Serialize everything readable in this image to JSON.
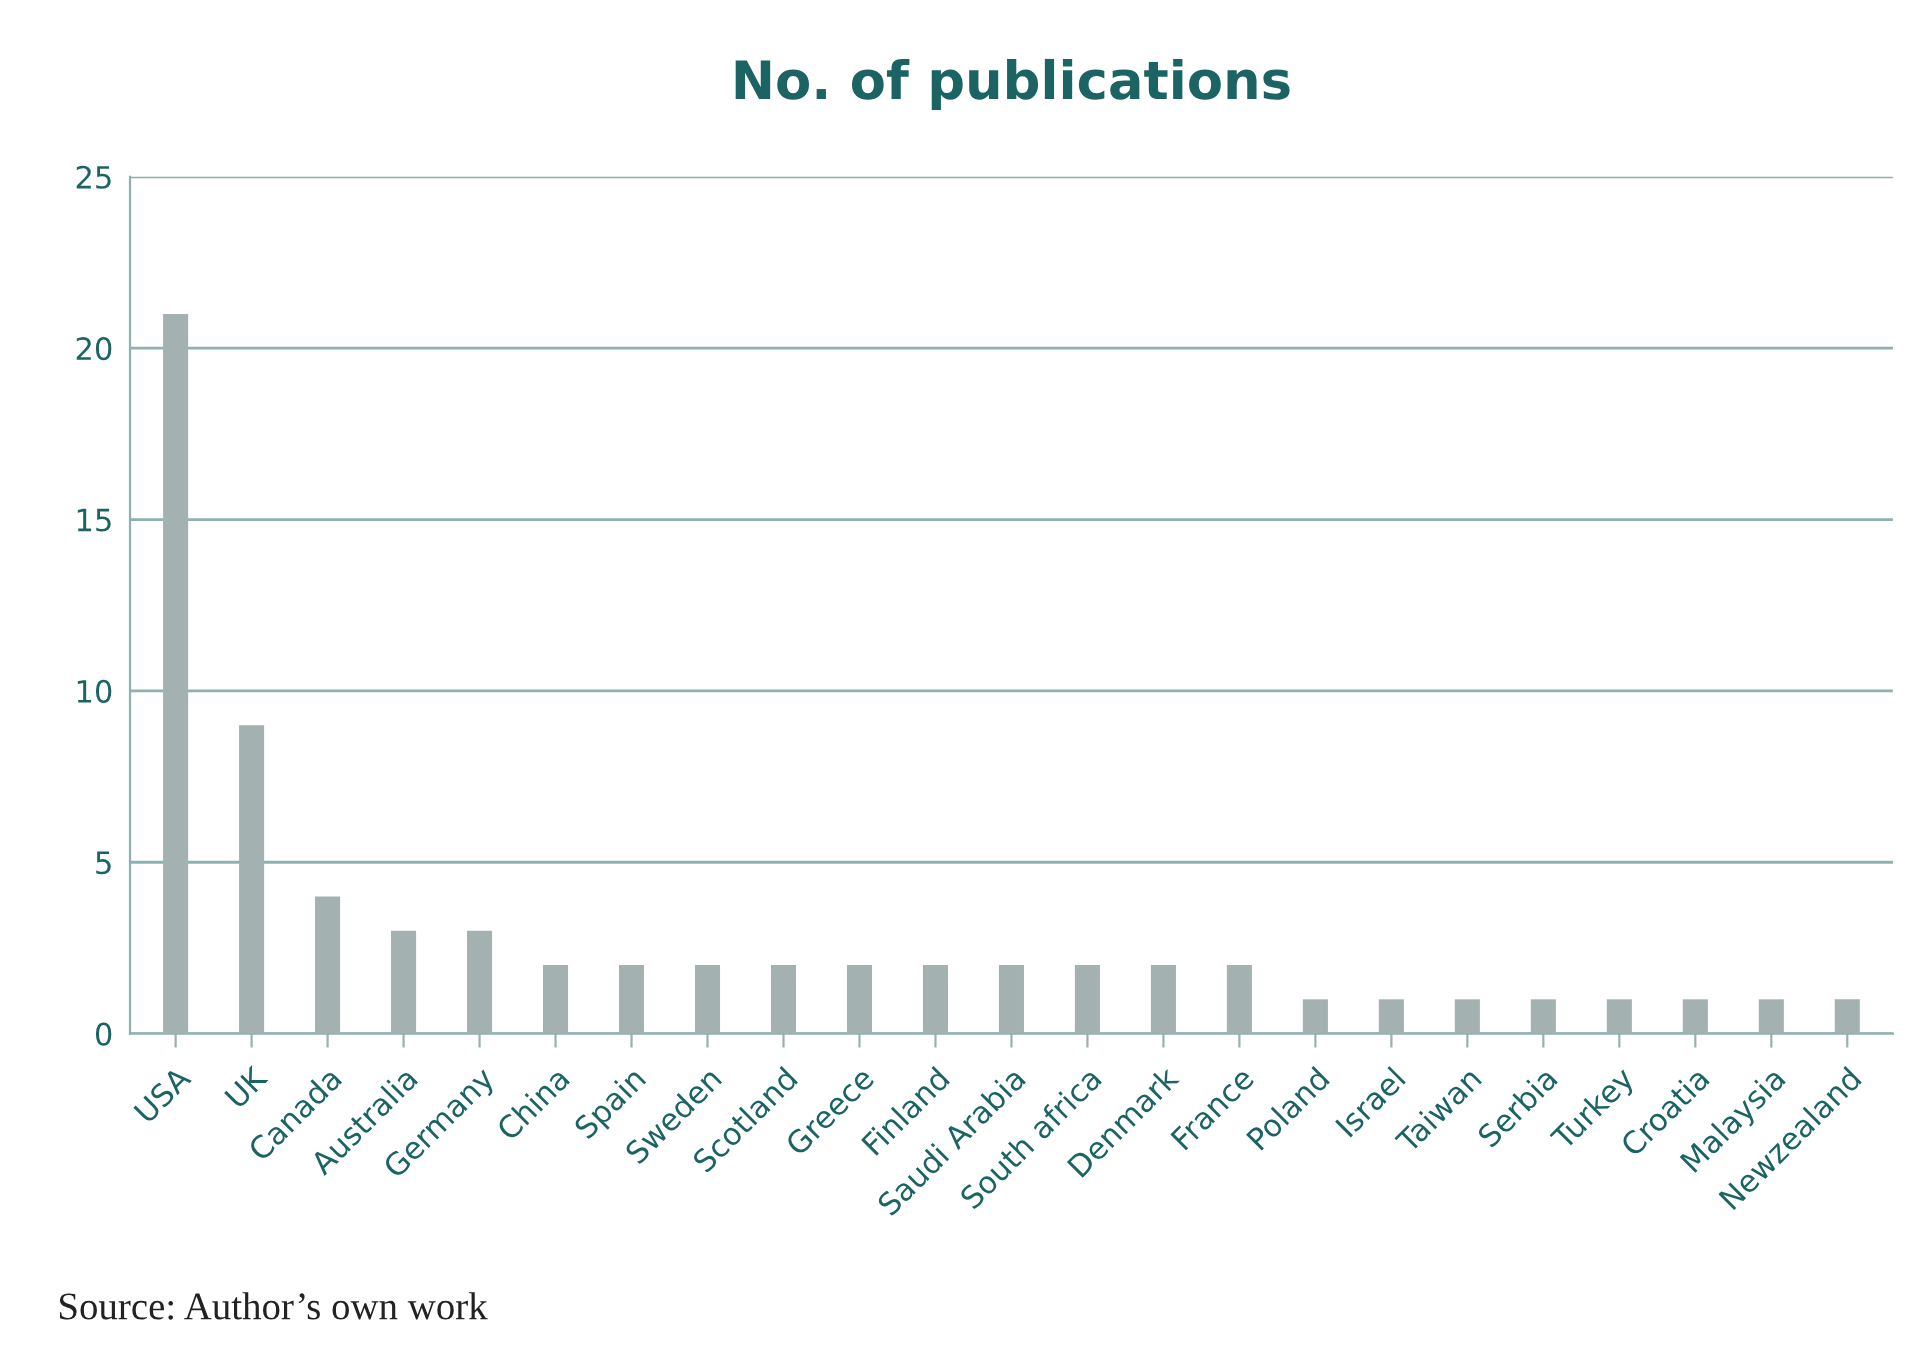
{
  "chart_data": {
    "type": "bar",
    "title": "No. of publications",
    "categories": [
      "USA",
      "UK",
      "Canada",
      "Australia",
      "Germany",
      "China",
      "Spain",
      "Sweden",
      "Scotland",
      "Greece",
      "Finland",
      "Saudi Arabia",
      "South africa",
      "Denmark",
      "France",
      "Poland",
      "Israel",
      "Taiwan",
      "Serbia",
      "Turkey",
      "Croatia",
      "Malaysia",
      "Newzealand"
    ],
    "values": [
      21,
      9,
      4,
      3,
      3,
      2,
      2,
      2,
      2,
      2,
      2,
      2,
      2,
      2,
      2,
      1,
      1,
      1,
      1,
      1,
      1,
      1,
      1
    ],
    "color": "#a3b1b1",
    "ylim": [
      0,
      25
    ],
    "yticks": [
      0,
      5,
      10,
      15,
      20,
      25
    ],
    "grid": "y",
    "legend": false,
    "annotations": [
      "Source: Author’s own work"
    ]
  }
}
